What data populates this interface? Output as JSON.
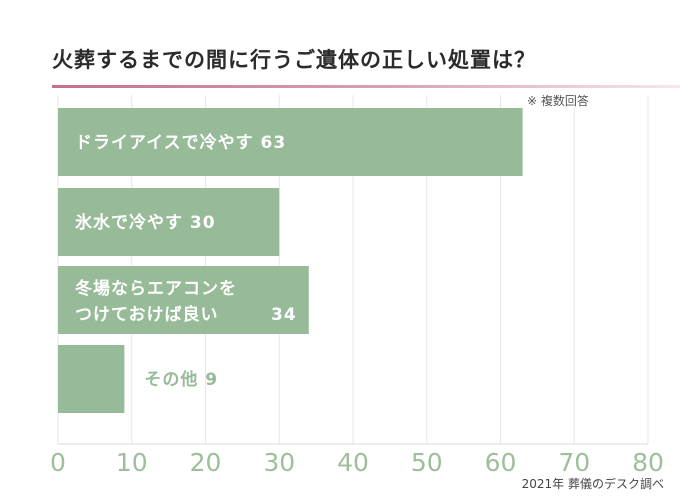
{
  "header": {
    "title": "火葬するまでの間に行うご遺体の正しい処置は？",
    "note": "※ 複数回答"
  },
  "footer": {
    "source": "2021年 葬儀のデスク調べ"
  },
  "chart_data": {
    "type": "bar",
    "orientation": "horizontal",
    "categories": [
      [
        "ドライアイスで冷やす"
      ],
      [
        "氷水で冷やす"
      ],
      [
        "冬場ならエアコンを",
        "つけておけば良い"
      ],
      [
        "その他"
      ]
    ],
    "values": [
      63,
      30,
      34,
      9
    ],
    "xlim": [
      0,
      80
    ],
    "xticks": [
      0,
      10,
      20,
      30,
      40,
      50,
      60,
      70,
      80
    ],
    "grid": true,
    "colors": {
      "bar": "#97bb99",
      "label_inside": "#ffffff",
      "label_outside": "#97bb99",
      "tick": "#9dbf9a",
      "grid": "#e7e7e7",
      "title_rule": "#c2708e"
    }
  }
}
